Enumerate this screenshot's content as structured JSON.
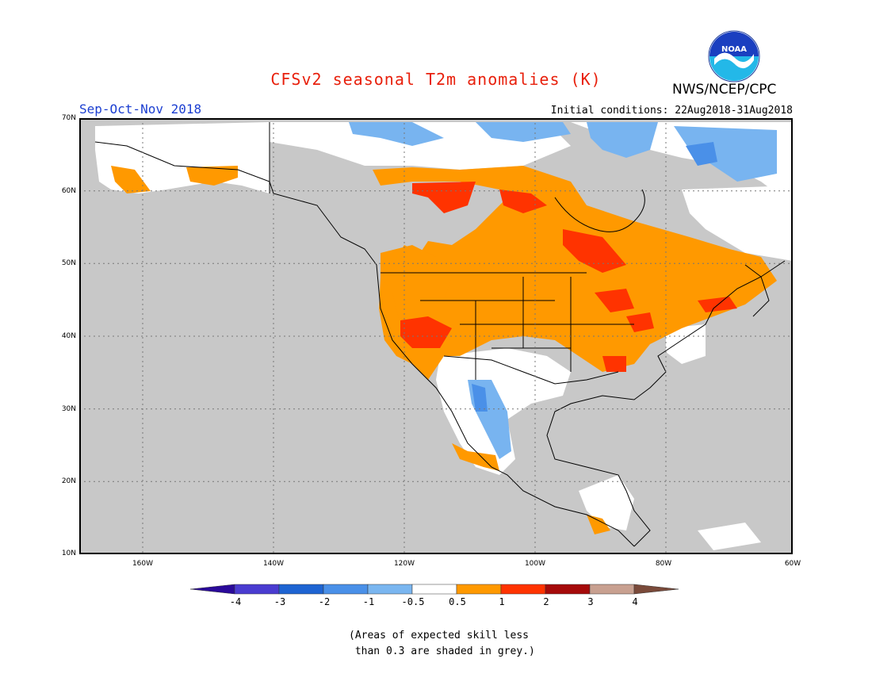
{
  "header": {
    "title": "CFSv2 seasonal T2m anomalies (K)",
    "period": "Sep-Oct-Nov 2018",
    "initial_conditions": "Initial conditions: 22Aug2018-31Aug2018",
    "agency": "NWS/NCEP/CPC",
    "logo_text": "NOAA"
  },
  "map": {
    "region": "North America",
    "lat_labels": [
      "70N",
      "60N",
      "50N",
      "40N",
      "30N",
      "20N",
      "10N"
    ],
    "lon_labels": [
      "160W",
      "140W",
      "120W",
      "100W",
      "80W",
      "60W"
    ],
    "grey_meaning": "low skill",
    "colors": {
      "grey": "#c8c8c8",
      "white": "#ffffff",
      "warm_0_5_1": "#ff9900",
      "warm_1_2": "#ff3300",
      "cool_m1_m0_5": "#78b4f0",
      "cool_m2_m1": "#4a90e8"
    }
  },
  "colorbar": {
    "labels": [
      "-4",
      "-3",
      "-2",
      "-1",
      "-0.5",
      "0.5",
      "1",
      "2",
      "3",
      "4"
    ],
    "colors": [
      "#2a0a9a",
      "#4a3cd0",
      "#1e64d2",
      "#4a90e8",
      "#7ab6f0",
      "#ffffff",
      "#ff9900",
      "#ff3300",
      "#a50a0a",
      "#c8a090",
      "#7a4a3a"
    ]
  },
  "footnote": "(Areas of expected skill less\n than 0.3 are shaded in grey.)"
}
